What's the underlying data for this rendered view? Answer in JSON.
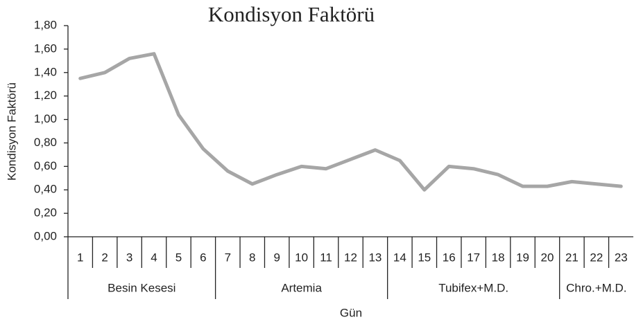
{
  "chart_data": {
    "type": "line",
    "title": "Kondisyon Faktörü",
    "y_label": "Kondisyon Faktörü",
    "x_label": "Gün",
    "groups": [
      {
        "label": "Besin Kesesi",
        "categories": [
          "1",
          "2",
          "3",
          "4",
          "5",
          "6"
        ]
      },
      {
        "label": "Artemia",
        "categories": [
          "7",
          "8",
          "9",
          "10",
          "11",
          "12",
          "13"
        ]
      },
      {
        "label": "Tubifex+M.D.",
        "categories": [
          "14",
          "15",
          "16",
          "17",
          "18",
          "19",
          "20"
        ]
      },
      {
        "label": "Chro.+M.D.",
        "categories": [
          "21",
          "22",
          "23"
        ]
      }
    ],
    "values": [
      1.35,
      1.4,
      1.52,
      1.56,
      1.04,
      0.75,
      0.56,
      0.45,
      0.53,
      0.6,
      0.58,
      0.66,
      0.74,
      0.65,
      0.4,
      0.6,
      0.58,
      0.53,
      0.43,
      0.43,
      0.47,
      0.45,
      0.43
    ],
    "color": "#a6a6a6",
    "ylim": [
      0,
      1.8
    ],
    "yticks": [
      {
        "value": 0,
        "label": "0,00"
      },
      {
        "value": 0.2,
        "label": "0,20"
      },
      {
        "value": 0.4,
        "label": "0,40"
      },
      {
        "value": 0.6,
        "label": "0,60"
      },
      {
        "value": 0.8,
        "label": "0,80"
      },
      {
        "value": 1,
        "label": "1,00"
      },
      {
        "value": 1.2,
        "label": "1,20"
      },
      {
        "value": 1.4,
        "label": "1,40"
      },
      {
        "value": 1.6,
        "label": "1,60"
      },
      {
        "value": 1.8,
        "label": "1,80"
      }
    ]
  }
}
